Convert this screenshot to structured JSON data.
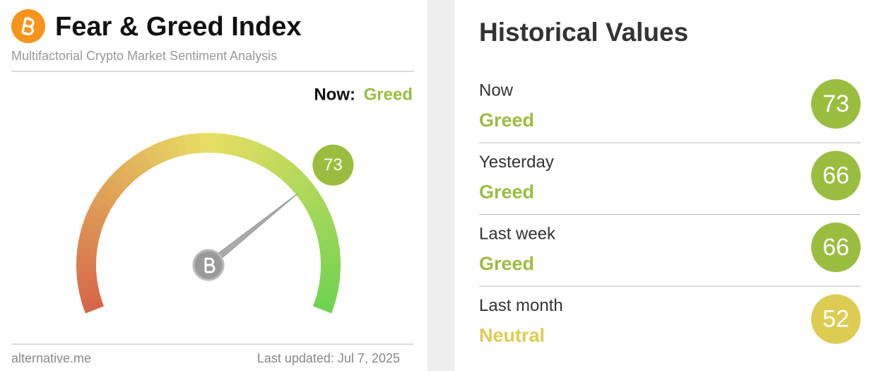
{
  "header": {
    "title": "Fear & Greed Index",
    "subtitle": "Multifactorial Crypto Market Sentiment Analysis"
  },
  "now": {
    "label": "Now:",
    "classification": "Greed",
    "color": "#9bbd3f"
  },
  "gauge": {
    "value": 73,
    "color": "#9bbd3f"
  },
  "footer": {
    "source": "alternative.me",
    "updated": "Last updated: Jul 7, 2025"
  },
  "historical": {
    "title": "Historical Values",
    "rows": [
      {
        "period": "Now",
        "classification": "Greed",
        "value": 73,
        "color": "#9bbd3f"
      },
      {
        "period": "Yesterday",
        "classification": "Greed",
        "value": 66,
        "color": "#9bbd3f"
      },
      {
        "period": "Last week",
        "classification": "Greed",
        "value": 66,
        "color": "#9bbd3f"
      },
      {
        "period": "Last month",
        "classification": "Neutral",
        "value": 52,
        "color": "#dccd52"
      }
    ]
  }
}
